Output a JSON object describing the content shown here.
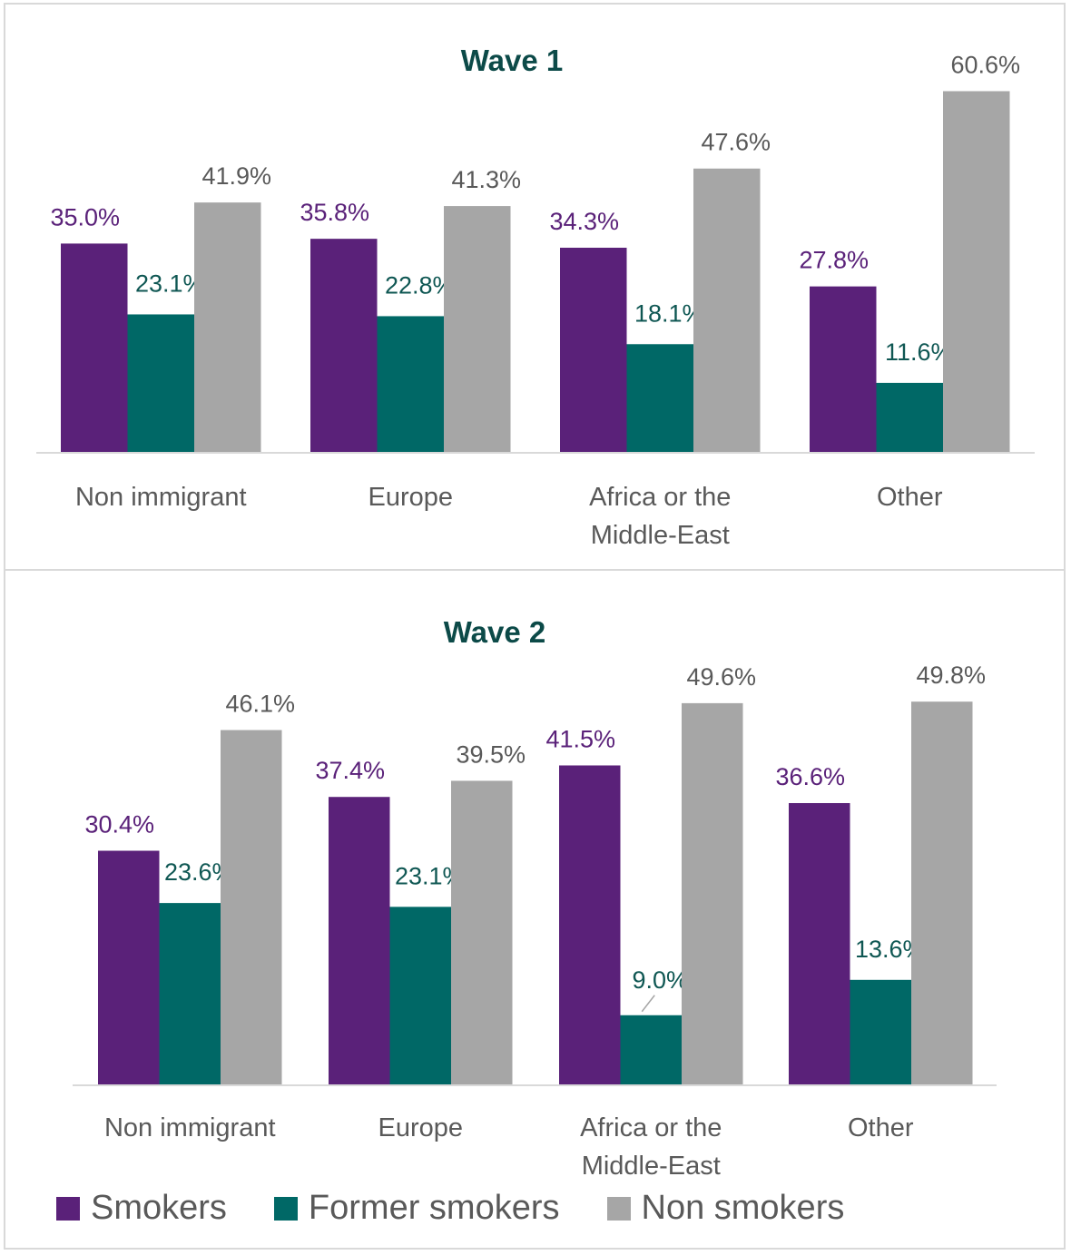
{
  "chart_data": [
    {
      "type": "bar",
      "title": "Wave 1",
      "categories": [
        [
          "Non immigrant"
        ],
        [
          "Europe"
        ],
        [
          "Africa or the",
          "Middle-East"
        ],
        [
          "Other"
        ]
      ],
      "series": [
        {
          "name": "Smokers",
          "color": "#5a2179",
          "values": [
            35.0,
            35.8,
            34.3,
            27.8
          ],
          "labels": [
            "35.0%",
            "35.8%",
            "34.3%",
            "27.8%"
          ]
        },
        {
          "name": "Former smokers",
          "color": "#006866",
          "values": [
            23.1,
            22.8,
            18.1,
            11.6
          ],
          "labels": [
            "23.1%",
            "22.8%",
            "18.1%",
            "11.6%"
          ]
        },
        {
          "name": "Non smokers",
          "color": "#a6a6a6",
          "values": [
            41.9,
            41.3,
            47.6,
            60.6
          ],
          "labels": [
            "41.9%",
            "41.3%",
            "47.6%",
            "60.6%"
          ]
        }
      ],
      "ylim": [
        0,
        65
      ],
      "grid": false
    },
    {
      "type": "bar",
      "title": "Wave 2",
      "categories": [
        [
          "Non immigrant"
        ],
        [
          "Europe"
        ],
        [
          "Africa or the",
          "Middle-East"
        ],
        [
          "Other"
        ]
      ],
      "series": [
        {
          "name": "Smokers",
          "color": "#5a2179",
          "values": [
            30.4,
            37.4,
            41.5,
            36.6
          ],
          "labels": [
            "30.4%",
            "37.4%",
            "41.5%",
            "36.6%"
          ]
        },
        {
          "name": "Former smokers",
          "color": "#006866",
          "values": [
            23.6,
            23.1,
            9.0,
            13.6
          ],
          "labels": [
            "23.6%",
            "23.1%",
            "9.0%",
            "13.6%"
          ]
        },
        {
          "name": "Non smokers",
          "color": "#a6a6a6",
          "values": [
            46.1,
            39.5,
            49.6,
            49.8
          ],
          "labels": [
            "46.1%",
            "39.5%",
            "49.6%",
            "49.8%"
          ]
        }
      ],
      "ylim": [
        0,
        52
      ],
      "grid": false
    }
  ],
  "legend": {
    "placement": "bottom-left",
    "items": [
      {
        "label": "Smokers",
        "color": "#5a2179"
      },
      {
        "label": "Former smokers",
        "color": "#006866"
      },
      {
        "label": "Non smokers",
        "color": "#a6a6a6"
      }
    ]
  },
  "colors": {
    "title": "#0c4a48",
    "axis_text": "#595959",
    "smokers_label": "#5a2179",
    "former_label": "#0f5753",
    "non_label": "#595959"
  }
}
